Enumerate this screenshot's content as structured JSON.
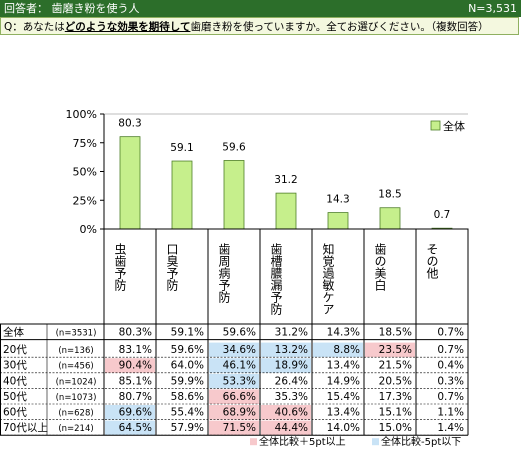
{
  "header": {
    "title": "回答者： 歯磨き粉を使う人",
    "n_label": "N=3,531"
  },
  "question": {
    "prefix": "Q：あなたは",
    "emphasis": "どのような効果を期待して",
    "suffix": "歯磨き粉を使っていますか。全てお選びください。（複数回答）"
  },
  "colors": {
    "bar_fill": "#c6ef8c",
    "bar_stroke": "#4f7f2a",
    "high": "#f7c9cc",
    "low": "#c9e3f6",
    "header_bg": "#2c6e2a"
  },
  "legend": {
    "hi": "全体比較＋5pt以上",
    "lo": "全体比較-5pt以下"
  },
  "chart_data": {
    "type": "bar",
    "categories": [
      "虫歯予防",
      "口臭予防",
      "歯周病予防",
      "歯槽膿漏予防",
      "知覚過敏ケア",
      "歯の美白",
      "その他"
    ],
    "series": [
      {
        "name": "全体",
        "values": [
          80.3,
          59.1,
          59.6,
          31.2,
          14.3,
          18.5,
          0.7
        ]
      }
    ],
    "y_ticks": [
      "0%",
      "25%",
      "50%",
      "75%",
      "100%"
    ],
    "ylim": [
      0,
      100
    ],
    "legend_position": "top-right"
  },
  "table": {
    "rows": [
      {
        "label": "全体",
        "n": "(n=3531)",
        "values": [
          "80.3%",
          "59.1%",
          "59.6%",
          "31.2%",
          "14.3%",
          "18.5%",
          "0.7%"
        ],
        "flags": [
          "",
          "",
          "",
          "",
          "",
          "",
          ""
        ]
      },
      {
        "label": "20代",
        "n": "(n=136)",
        "values": [
          "83.1%",
          "59.6%",
          "34.6%",
          "13.2%",
          "8.8%",
          "23.5%",
          "0.7%"
        ],
        "flags": [
          "",
          "",
          "low",
          "low",
          "low",
          "high",
          ""
        ]
      },
      {
        "label": "30代",
        "n": "(n=456)",
        "values": [
          "90.4%",
          "64.0%",
          "46.1%",
          "18.9%",
          "13.4%",
          "21.5%",
          "0.4%"
        ],
        "flags": [
          "high",
          "",
          "low",
          "low",
          "",
          "",
          ""
        ]
      },
      {
        "label": "40代",
        "n": "(n=1024)",
        "values": [
          "85.1%",
          "59.9%",
          "53.3%",
          "26.4%",
          "14.9%",
          "20.5%",
          "0.3%"
        ],
        "flags": [
          "",
          "",
          "low",
          "",
          "",
          "",
          ""
        ]
      },
      {
        "label": "50代",
        "n": "(n=1073)",
        "values": [
          "80.7%",
          "58.6%",
          "66.6%",
          "35.3%",
          "15.4%",
          "17.3%",
          "0.7%"
        ],
        "flags": [
          "",
          "",
          "high",
          "",
          "",
          "",
          ""
        ]
      },
      {
        "label": "60代",
        "n": "(n=628)",
        "values": [
          "69.6%",
          "55.4%",
          "68.9%",
          "40.6%",
          "13.4%",
          "15.1%",
          "1.1%"
        ],
        "flags": [
          "low",
          "",
          "high",
          "high",
          "",
          "",
          ""
        ]
      },
      {
        "label": "70代以上",
        "n": "(n=214)",
        "values": [
          "64.5%",
          "57.9%",
          "71.5%",
          "44.4%",
          "14.0%",
          "15.0%",
          "1.4%"
        ],
        "flags": [
          "low",
          "",
          "high",
          "high",
          "",
          "",
          ""
        ]
      }
    ]
  }
}
